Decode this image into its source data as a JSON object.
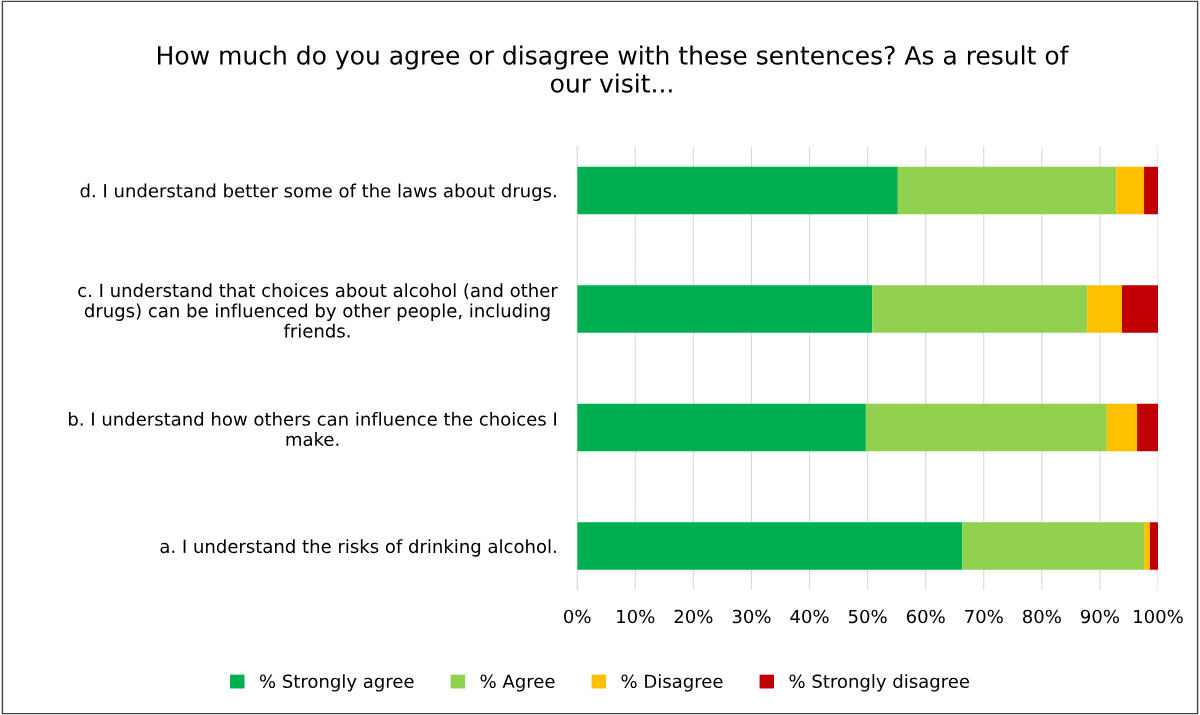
{
  "chart_data": {
    "type": "bar",
    "orientation": "horizontal",
    "stacked": true,
    "title": "How much do you agree or disagree with these sentences? As a result of\nour visit...",
    "categories": [
      "d. I understand better some of the laws about drugs.",
      "c. I understand that choices about alcohol (and other\ndrugs) can be influenced by other people, including\nfriends.",
      "b. I understand how others can influence the choices I\nmake.",
      "a. I understand the risks of drinking alcohol."
    ],
    "series": [
      {
        "name": "% Strongly agree",
        "color": "#00b050",
        "values": [
          55.2,
          50.8,
          49.7,
          66.3
        ]
      },
      {
        "name": "% Agree",
        "color": "#92d050",
        "values": [
          37.6,
          37.0,
          41.5,
          31.3
        ]
      },
      {
        "name": "% Disagree",
        "color": "#ffc000",
        "values": [
          4.8,
          6.0,
          5.2,
          1.0
        ]
      },
      {
        "name": "% Strongly disagree",
        "color": "#c00000",
        "values": [
          2.4,
          6.2,
          3.6,
          1.4
        ]
      }
    ],
    "xlim": [
      0,
      100
    ],
    "xticks": [
      {
        "value": 0,
        "label": "0%"
      },
      {
        "value": 10,
        "label": "10%"
      },
      {
        "value": 20,
        "label": "20%"
      },
      {
        "value": 30,
        "label": "30%"
      },
      {
        "value": 40,
        "label": "40%"
      },
      {
        "value": 50,
        "label": "50%"
      },
      {
        "value": 60,
        "label": "60%"
      },
      {
        "value": 70,
        "label": "70%"
      },
      {
        "value": 80,
        "label": "80%"
      },
      {
        "value": 90,
        "label": "90%"
      },
      {
        "value": 100,
        "label": "100%"
      }
    ],
    "grid": "x",
    "legend": "bottom"
  }
}
